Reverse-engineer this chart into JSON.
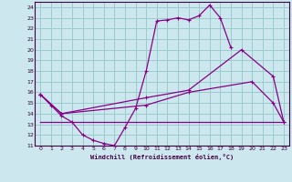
{
  "xlabel": "Windchill (Refroidissement éolien,°C)",
  "background_color": "#cce8ee",
  "grid_color": "#99cccc",
  "line_color": "#880088",
  "xlim": [
    -0.5,
    23.5
  ],
  "ylim": [
    11,
    24.5
  ],
  "xticks": [
    0,
    1,
    2,
    3,
    4,
    5,
    6,
    7,
    8,
    9,
    10,
    11,
    12,
    13,
    14,
    15,
    16,
    17,
    18,
    19,
    20,
    21,
    22,
    23
  ],
  "yticks": [
    11,
    12,
    13,
    14,
    15,
    16,
    17,
    18,
    19,
    20,
    21,
    22,
    23,
    24
  ],
  "line1_x": [
    0,
    1,
    2,
    3,
    4,
    5,
    6,
    7,
    8,
    9,
    10,
    11,
    12,
    13,
    14,
    15,
    16,
    17,
    18
  ],
  "line1_y": [
    15.8,
    14.8,
    13.8,
    13.2,
    12.0,
    11.5,
    11.2,
    11.0,
    12.7,
    14.5,
    18.0,
    22.7,
    22.8,
    23.0,
    22.8,
    23.2,
    24.2,
    23.0,
    20.2
  ],
  "line2_x": [
    0,
    2,
    10,
    14,
    19,
    22,
    23
  ],
  "line2_y": [
    15.8,
    14.0,
    15.5,
    16.2,
    20.0,
    17.5,
    13.2
  ],
  "line3_x": [
    0,
    2,
    10,
    14,
    20,
    22,
    23
  ],
  "line3_y": [
    15.8,
    14.0,
    14.8,
    16.0,
    17.0,
    15.0,
    13.2
  ],
  "line4_x": [
    0,
    23
  ],
  "line4_y": [
    13.2,
    13.2
  ]
}
